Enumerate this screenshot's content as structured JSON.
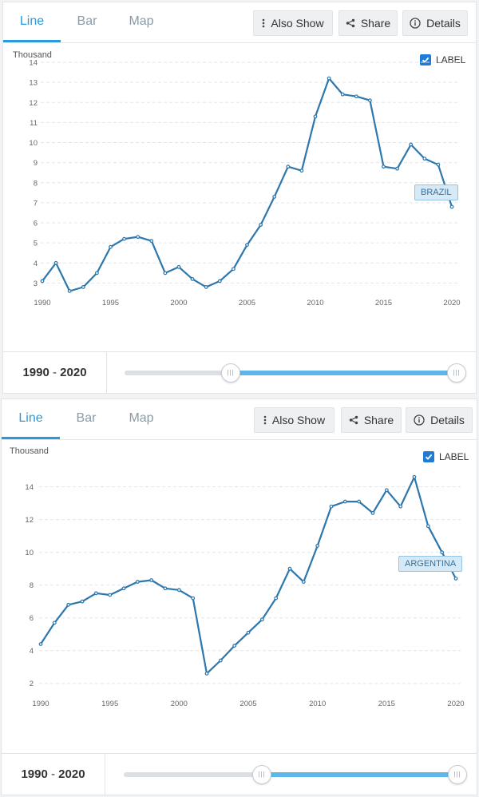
{
  "panels": [
    {
      "tabs": [
        {
          "label": "Line"
        },
        {
          "label": "Bar"
        },
        {
          "label": "Map"
        }
      ],
      "buttons": {
        "also_show": "Also Show",
        "share": "Share",
        "details": "Details"
      },
      "unit": "Thousand",
      "label_toggle": {
        "text": "LABEL",
        "checked": true
      },
      "range_text": {
        "start": "1990",
        "sep": "-",
        "end": "2020"
      },
      "slider": {
        "min_year": 1990,
        "max_year": 2020,
        "handle_low_fraction": 0.31,
        "handle_high_fraction": 1.0
      }
    },
    {
      "tabs": [
        {
          "label": "Line"
        },
        {
          "label": "Bar"
        },
        {
          "label": "Map"
        }
      ],
      "buttons": {
        "also_show": "Also Show",
        "share": "Share",
        "details": "Details"
      },
      "unit": "Thousand",
      "label_toggle": {
        "text": "LABEL",
        "checked": true
      },
      "range_text": {
        "start": "1990",
        "sep": "-",
        "end": "2020"
      },
      "slider": {
        "min_year": 1990,
        "max_year": 2020,
        "handle_low_fraction": 0.405,
        "handle_high_fraction": 1.0
      }
    }
  ],
  "colors": {
    "accent": "#2a9ad8",
    "series": "#2c77ad",
    "slider_fill": "#5eb6ea",
    "tag_bg": "#d6e9f6"
  },
  "chart_data": [
    {
      "type": "line",
      "ylabel": "Thousand",
      "ylim": [
        2.5,
        14
      ],
      "yticks": [
        3,
        4,
        5,
        6,
        7,
        8,
        9,
        10,
        11,
        12,
        13,
        14
      ],
      "xticks": [
        1990,
        1995,
        2000,
        2005,
        2010,
        2015,
        2020
      ],
      "grid": true,
      "x": [
        1990,
        1991,
        1992,
        1993,
        1994,
        1995,
        1996,
        1997,
        1998,
        1999,
        2000,
        2001,
        2002,
        2003,
        2004,
        2005,
        2006,
        2007,
        2008,
        2009,
        2010,
        2011,
        2012,
        2013,
        2014,
        2015,
        2016,
        2017,
        2018,
        2019,
        2020
      ],
      "series": [
        {
          "name": "BRAZIL",
          "values": [
            3.1,
            4.0,
            2.6,
            2.8,
            3.5,
            4.8,
            5.2,
            5.3,
            5.1,
            3.5,
            3.8,
            3.2,
            2.8,
            3.1,
            3.7,
            4.9,
            5.9,
            7.3,
            8.8,
            8.6,
            11.3,
            13.2,
            12.4,
            12.3,
            12.1,
            8.8,
            8.7,
            9.9,
            9.2,
            8.9,
            6.8
          ]
        }
      ]
    },
    {
      "type": "line",
      "ylabel": "Thousand",
      "ylim": [
        1.5,
        15.2
      ],
      "yticks": [
        2,
        4,
        6,
        8,
        10,
        12,
        14
      ],
      "xticks": [
        1990,
        1995,
        2000,
        2005,
        2010,
        2015,
        2020
      ],
      "grid": true,
      "x": [
        1990,
        1991,
        1992,
        1993,
        1994,
        1995,
        1996,
        1997,
        1998,
        1999,
        2000,
        2001,
        2002,
        2003,
        2004,
        2005,
        2006,
        2007,
        2008,
        2009,
        2010,
        2011,
        2012,
        2013,
        2014,
        2015,
        2016,
        2017,
        2018,
        2019,
        2020
      ],
      "series": [
        {
          "name": "ARGENTINA",
          "values": [
            4.4,
            5.7,
            6.8,
            7.0,
            7.5,
            7.4,
            7.8,
            8.2,
            8.3,
            7.8,
            7.7,
            7.2,
            2.6,
            3.4,
            4.3,
            5.1,
            5.9,
            7.2,
            9.0,
            8.2,
            10.4,
            12.8,
            13.1,
            13.1,
            12.4,
            13.8,
            12.8,
            14.6,
            11.6,
            10.0,
            8.4
          ]
        }
      ]
    }
  ]
}
